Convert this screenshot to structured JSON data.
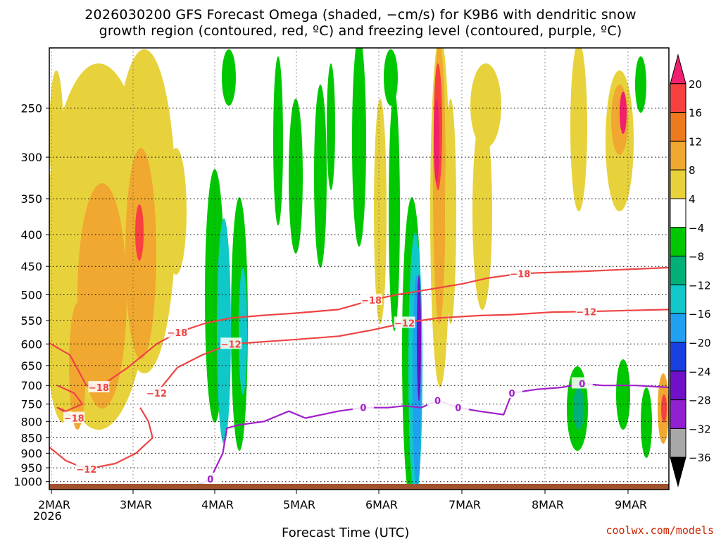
{
  "title_line1": "2026030200 GFS Forecast Omega (shaded, −cm/s) for K9B6 with dendritic snow",
  "title_line2": "growth region (contoured, red, ºC) and freezing level (contoured, purple, ºC)",
  "credit": "coolwx.com/models",
  "chart_data": {
    "type": "heatmap",
    "title": "2026030200 GFS Forecast Omega (shaded, −cm/s) for K9B6 with dendritic snow growth region (contoured, red, ºC) and freezing level (contoured, purple, ºC)",
    "xlabel": "Forecast Time (UTC)",
    "ylabel": "",
    "x_ticks": [
      "2MAR",
      "3MAR",
      "4MAR",
      "5MAR",
      "6MAR",
      "7MAR",
      "8MAR",
      "9MAR"
    ],
    "x_year": "2026",
    "x_range_days": [
      0,
      7.5
    ],
    "y_ticks": [
      250,
      300,
      350,
      400,
      450,
      500,
      550,
      600,
      650,
      700,
      750,
      800,
      850,
      900,
      950,
      1000
    ],
    "y_tick_labels": [
      "250",
      "300",
      "350",
      "400",
      "450",
      "500",
      "550",
      "600",
      "650",
      "700",
      "750",
      "800",
      "850",
      "900",
      "950",
      "1000"
    ],
    "y_range_hpa": [
      200,
      1030
    ],
    "colorbar": {
      "labels": [
        "20",
        "16",
        "12",
        "8",
        "4",
        "−4",
        "−8",
        "−12",
        "−16",
        "−20",
        "−24",
        "−28",
        "−32",
        "−36"
      ],
      "bounds": [
        20,
        16,
        12,
        8,
        4,
        -4,
        -8,
        -12,
        -16,
        -20,
        -24,
        -28,
        -32,
        -36
      ],
      "colors": [
        "#f0206e",
        "#f84040",
        "#ee7a1e",
        "#f0a830",
        "#e8d23c",
        "#ffffff",
        "#00c800",
        "#00b078",
        "#10c8c8",
        "#20a0f0",
        "#1840e0",
        "#7010c8",
        "#9020d0",
        "#a8a8a8",
        "#000000"
      ]
    },
    "contours": [
      {
        "name": "-18 °C",
        "label": "−18",
        "color": "#ee4444",
        "points": [
          [
            0,
            598
          ],
          [
            0.25,
            625
          ],
          [
            0.45,
            700
          ],
          [
            0.6,
            705
          ],
          [
            0.95,
            655
          ],
          [
            1.3,
            600
          ],
          [
            1.55,
            575
          ],
          [
            1.9,
            555
          ],
          [
            2.2,
            545
          ],
          [
            2.55,
            540
          ],
          [
            3,
            535
          ],
          [
            3.5,
            528
          ],
          [
            3.9,
            510
          ],
          [
            4.2,
            500
          ],
          [
            4.6,
            490
          ],
          [
            5,
            480
          ],
          [
            5.3,
            470
          ],
          [
            5.7,
            462
          ],
          [
            6.1,
            460
          ],
          [
            6.5,
            458
          ],
          [
            7,
            455
          ],
          [
            7.5,
            452
          ]
        ]
      },
      {
        "name": "-12 °C",
        "label": "−12",
        "color": "#ee4444",
        "points": [
          [
            1.3,
            720
          ],
          [
            1.55,
            655
          ],
          [
            1.85,
            625
          ],
          [
            2.2,
            600
          ],
          [
            2.6,
            595
          ],
          [
            3,
            590
          ],
          [
            3.5,
            583
          ],
          [
            3.9,
            570
          ],
          [
            4.3,
            555
          ],
          [
            4.7,
            545
          ],
          [
            5.2,
            540
          ],
          [
            5.6,
            538
          ],
          [
            6.1,
            533
          ],
          [
            6.5,
            532
          ],
          [
            7,
            530
          ],
          [
            7.5,
            528
          ]
        ]
      },
      {
        "name": "-18 °C (low)",
        "label": "−18",
        "color": "#ee4444",
        "points": [
          [
            0.1,
            700
          ],
          [
            0.3,
            720
          ],
          [
            0.4,
            750
          ],
          [
            0.2,
            770
          ],
          [
            0.1,
            760
          ],
          [
            0.3,
            790
          ]
        ]
      },
      {
        "name": "-12 °C (low)",
        "label": "−12",
        "color": "#ee4444",
        "points": [
          [
            0,
            880
          ],
          [
            0.2,
            925
          ],
          [
            0.45,
            955
          ],
          [
            0.8,
            935
          ],
          [
            1.05,
            900
          ],
          [
            1.25,
            850
          ],
          [
            1.2,
            800
          ],
          [
            1.1,
            760
          ]
        ]
      },
      {
        "name": "freezing level 0 °C",
        "label": "0",
        "color": "#a020c8",
        "points": [
          [
            1.7,
            1030
          ],
          [
            1.95,
            990
          ],
          [
            2.1,
            900
          ],
          [
            2.15,
            820
          ],
          [
            2.3,
            810
          ],
          [
            2.6,
            800
          ],
          [
            2.9,
            770
          ],
          [
            3.1,
            790
          ],
          [
            3.5,
            770
          ],
          [
            3.8,
            760
          ],
          [
            4.1,
            760
          ],
          [
            4.3,
            755
          ],
          [
            4.5,
            760
          ],
          [
            4.7,
            740
          ],
          [
            4.95,
            760
          ],
          [
            5.2,
            770
          ],
          [
            5.5,
            780
          ],
          [
            5.6,
            720
          ],
          [
            5.9,
            710
          ],
          [
            6.2,
            705
          ],
          [
            6.45,
            695
          ],
          [
            6.7,
            700
          ],
          [
            7.1,
            700
          ],
          [
            7.5,
            705
          ]
        ]
      }
    ],
    "contour_labels": [
      "−18",
      "−12",
      "−18",
      "−12",
      "−18",
      "−12",
      "−18",
      "−18",
      "−12",
      "−12",
      "0",
      "0",
      "0",
      "0",
      "0",
      "0"
    ],
    "omega_features": [
      {
        "name": "ascent-core-1",
        "x": 0.95,
        "p_top": 250,
        "p_bottom": 720,
        "value": 12
      },
      {
        "name": "ascent-core-2",
        "x": 0.5,
        "p_top": 350,
        "p_bottom": 650,
        "value": 10
      },
      {
        "name": "descent-band-1",
        "x": 2.2,
        "p_top": 400,
        "p_bottom": 900,
        "value": -16
      },
      {
        "name": "descent-band-2",
        "x": 4.5,
        "p_top": 350,
        "p_bottom": 950,
        "value": -28
      },
      {
        "name": "ascent-core-3",
        "x": 4.7,
        "p_top": 220,
        "p_bottom": 820,
        "value": 20
      },
      {
        "name": "ascent-core-4",
        "x": 7.0,
        "p_top": 240,
        "p_bottom": 320,
        "value": 20
      }
    ]
  }
}
